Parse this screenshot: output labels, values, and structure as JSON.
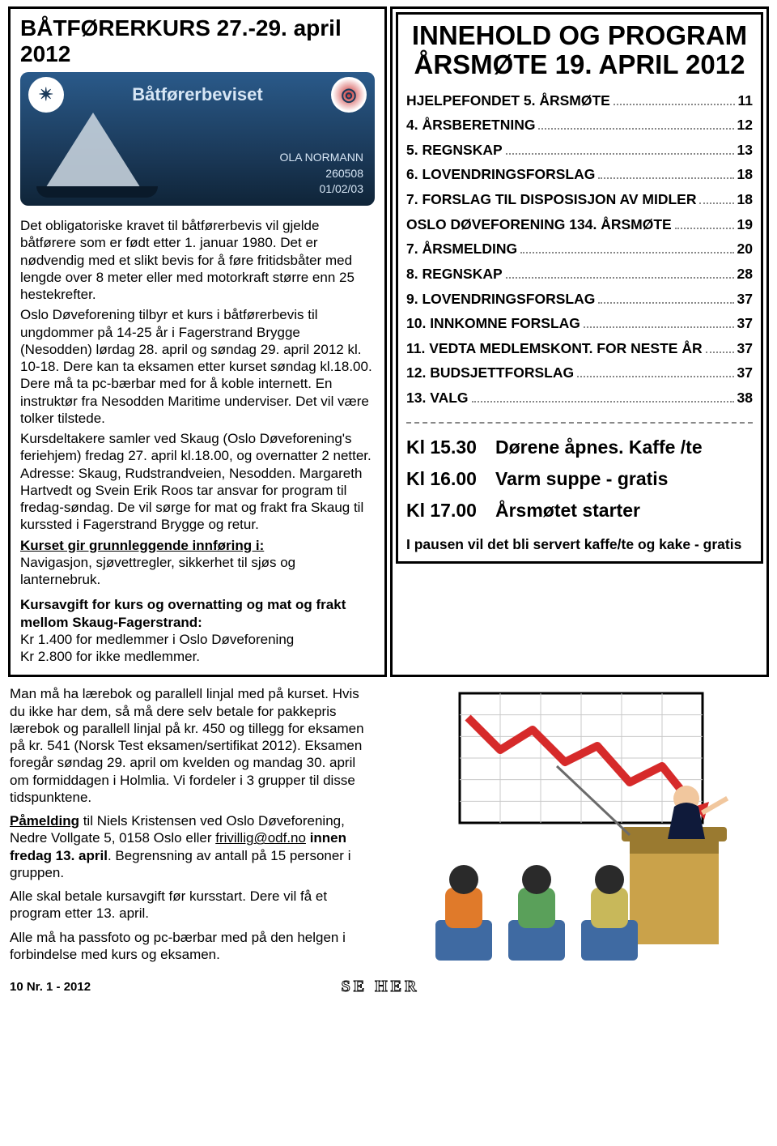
{
  "left": {
    "title": "BÅTFØRERKURS 27.-29. april 2012",
    "card": {
      "brand": "Båtførerbeviset",
      "name": "OLA NORMANN",
      "serial": "260508",
      "date": "01/02/03"
    },
    "p1": "Det obligatoriske kravet til båtførerbevis vil gjelde båtførere som er født etter 1. januar 1980. Det er nødvendig med et slikt bevis for å føre fritidsbåter med lengde over 8 meter eller med motorkraft større enn 25 hestekrefter.",
    "p2": "Oslo Døveforening tilbyr et kurs i båtførerbevis til ungdommer på 14-25 år i Fagerstrand Brygge (Nesodden) lørdag 28. april og søndag 29. april 2012 kl. 10-18. Dere kan ta eksamen etter kurset søndag kl.18.00. Dere må ta pc-bærbar med for å koble internett. En instruktør fra Nesodden Maritime underviser. Det vil være tolker tilstede.",
    "p3": "Kursdeltakere samler ved Skaug (Oslo Døveforening's feriehjem) fredag 27. april kl.18.00, og overnatter 2 netter. Adresse: Skaug, Rudstrandveien, Nesodden. Margareth Hartvedt og Svein Erik Roos tar ansvar for program til fredag-søndag. De vil sørge for mat og frakt fra Skaug til kurssted i Fagerstrand Brygge og retur.",
    "p4_label": "Kurset gir grunnleggende innføring i:",
    "p4_body": "Navigasjon, sjøvettregler, sikkerhet til sjøs og lanternebruk.",
    "fee_label": "Kursavgift for kurs og overnatting og mat og frakt mellom Skaug-Fagerstrand:",
    "fee_line1": "Kr 1.400 for medlemmer i Oslo Døveforening",
    "fee_line2": "Kr 2.800 for ikke medlemmer.",
    "lower1": "Man må ha lærebok og parallell linjal med på kurset. Hvis du ikke har dem, så må dere selv betale for pakkepris lærebok og parallell linjal på kr. 450 og tillegg for eksamen på kr. 541 (Norsk Test eksamen/sertifikat 2012). Eksamen foregår søndag 29. april om kvelden og mandag 30. april om formiddagen i Holmlia. Vi fordeler i 3 grupper til disse tidspunktene.",
    "lower2_pre": "Påmelding",
    "lower2_mid": " til Niels Kristensen ved Oslo Døveforening, Nedre Vollgate 5, 0158 Oslo eller ",
    "lower2_mail": "frivillig@odf.no",
    "lower2_post": " innen fredag 13. april",
    "lower2_tail": ". Begrensning av antall på 15 personer i gruppen.",
    "lower3": "Alle skal betale kursavgift før kursstart. Dere vil få et program etter 13. april.",
    "lower4": "Alle må ha passfoto og pc-bærbar med på den helgen i forbindelse med kurs og eksamen."
  },
  "right": {
    "title1": "INNEHOLD OG PROGRAM",
    "title2": "ÅRSMØTE 19. APRIL 2012",
    "toc": [
      {
        "label": "HJELPEFONDET  5. ÅRSMØTE",
        "page": "11"
      },
      {
        "label": "4. ÅRSBERETNING",
        "page": "12"
      },
      {
        "label": "5. REGNSKAP",
        "page": "13"
      },
      {
        "label": "6. LOVENDRINGSFORSLAG",
        "page": "18"
      },
      {
        "label": "7. FORSLAG TIL DISPOSISJON AV MIDLER",
        "page": "18"
      },
      {
        "label": "OSLO DØVEFORENING   134. ÅRSMØTE",
        "page": "19"
      },
      {
        "label": "7. ÅRSMELDING",
        "page": "20"
      },
      {
        "label": "8. REGNSKAP",
        "page": "28"
      },
      {
        "label": "9. LOVENDRINGSFORSLAG",
        "page": "37"
      },
      {
        "label": "10. INNKOMNE FORSLAG",
        "page": "37"
      },
      {
        "label": "11. VEDTA MEDLEMSKONT. FOR NESTE ÅR",
        "page": "37"
      },
      {
        "label": "12. BUDSJETTFORSLAG",
        "page": "37"
      },
      {
        "label": "13. VALG",
        "page": "38"
      }
    ],
    "schedule": [
      {
        "time": "Kl 15.30",
        "text": "Dørene åpnes. Kaffe /te"
      },
      {
        "time": "Kl 16.00",
        "text": "Varm suppe - gratis"
      },
      {
        "time": "Kl 17.00",
        "text": "Årsmøtet starter"
      }
    ],
    "note": "I pausen vil det bli servert kaffe/te og kake - gratis"
  },
  "illustration": {
    "bg": "#ffffff",
    "chart_bg": "#ffffff",
    "chart_border": "#000000",
    "grid": "#c9c9c9",
    "line_color": "#d62a2a",
    "arrow_color": "#d62a2a",
    "podium": "#caa24a",
    "podium_dark": "#9a7a30",
    "presenter_suit": "#0f1a3a",
    "presenter_skin": "#f1c79e",
    "pointer": "#6b6b6b",
    "person_a": "#e07a2a",
    "person_b": "#5aa05a",
    "person_c": "#c8b85a",
    "chair": "#3f6aa2",
    "chart_points": [
      [
        0,
        20
      ],
      [
        40,
        60
      ],
      [
        80,
        35
      ],
      [
        120,
        75
      ],
      [
        160,
        55
      ],
      [
        200,
        100
      ],
      [
        240,
        80
      ],
      [
        280,
        130
      ]
    ]
  },
  "footer": {
    "left": "10  Nr. 1 - 2012",
    "logo": "SE HER"
  }
}
